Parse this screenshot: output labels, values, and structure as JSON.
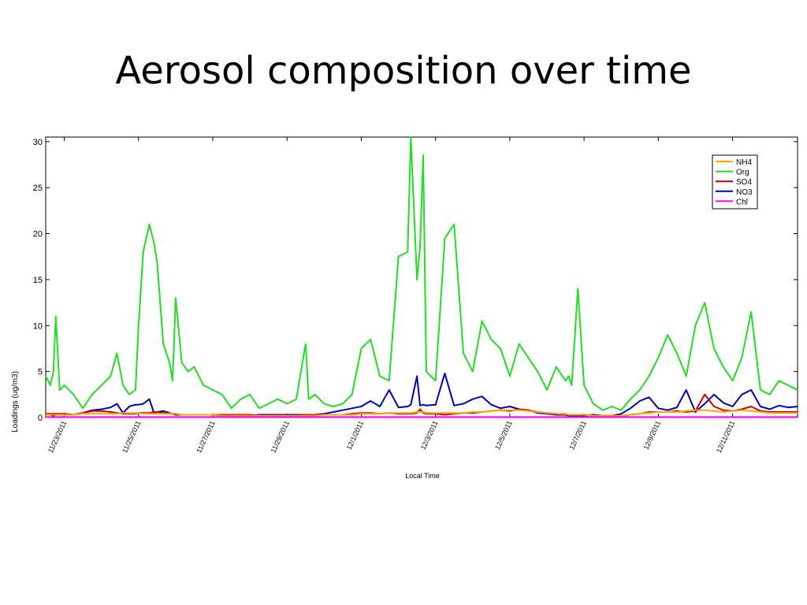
{
  "slide": {
    "title": "Aerosol composition over time"
  },
  "chart_data": {
    "type": "line",
    "title": "Aerosol composition over time",
    "xlabel": "Local Time",
    "ylabel": "Loadings (ug/m3)",
    "xlim": [
      "11/22/2011 12:00",
      "12/12/2011 18:00"
    ],
    "ylim": [
      0,
      30.5
    ],
    "yticks": [
      0,
      5,
      10,
      15,
      20,
      25,
      30
    ],
    "xticks": [
      "11/23/2011",
      "11/25/2011",
      "11/27/2011",
      "11/29/2011",
      "12/1/2011",
      "12/3/2011",
      "12/5/2011",
      "12/7/2011",
      "12/9/2011",
      "12/11/2011"
    ],
    "legend_position": "top-right",
    "grid": false,
    "x": [
      "11/22 12:00",
      "11/22 15:00",
      "11/22 17:00",
      "11/22 18:30",
      "11/22 21:00",
      "11/23 00:00",
      "11/23 06:00",
      "11/23 12:00",
      "11/23 18:00",
      "11/24 00:00",
      "11/24 06:00",
      "11/24 10:00",
      "11/24 14:00",
      "11/24 18:00",
      "11/24 22:00",
      "11/25 00:00",
      "11/25 03:00",
      "11/25 07:00",
      "11/25 10:00",
      "11/25 12:00",
      "11/25 16:00",
      "11/25 20:00",
      "11/25 22:00",
      "11/26 00:00",
      "11/26 04:00",
      "11/26 08:00",
      "11/26 12:00",
      "11/26 18:00",
      "11/27 00:00",
      "11/27 06:00",
      "11/27 12:00",
      "11/27 18:00",
      "11/28 00:00",
      "11/28 06:00",
      "11/28 12:00",
      "11/28 18:00",
      "11/29 00:00",
      "11/29 06:00",
      "11/29 12:00",
      "11/29 14:00",
      "11/29 18:00",
      "11/30 00:00",
      "11/30 06:00",
      "11/30 12:00",
      "11/30 18:00",
      "12/1 00:00",
      "12/1 06:00",
      "12/1 12:00",
      "12/1 18:00",
      "12/2 00:00",
      "12/2 06:00",
      "12/2 08:00",
      "12/2 12:00",
      "12/2 14:00",
      "12/2 16:00",
      "12/2 18:00",
      "12/3 00:00",
      "12/3 06:00",
      "12/3 12:00",
      "12/3 18:00",
      "12/4 00:00",
      "12/4 06:00",
      "12/4 12:00",
      "12/4 18:00",
      "12/5 00:00",
      "12/5 06:00",
      "12/5 12:00",
      "12/5 18:00",
      "12/6 00:00",
      "12/6 06:00",
      "12/6 12:00",
      "12/6 14:00",
      "12/6 16:00",
      "12/6 20:00",
      "12/7 00:00",
      "12/7 06:00",
      "12/7 12:00",
      "12/7 18:00",
      "12/8 00:00",
      "12/8 06:00",
      "12/8 12:00",
      "12/8 18:00",
      "12/9 00:00",
      "12/9 06:00",
      "12/9 12:00",
      "12/9 18:00",
      "12/10 00:00",
      "12/10 06:00",
      "12/10 12:00",
      "12/10 18:00",
      "12/11 00:00",
      "12/11 06:00",
      "12/11 12:00",
      "12/11 18:00",
      "12/12 00:00",
      "12/12 06:00",
      "12/12 12:00",
      "12/12 18:00"
    ],
    "series": [
      {
        "name": "NH4",
        "color": "#ffa500",
        "values": [
          0.3,
          0.3,
          0.3,
          0.3,
          0.3,
          0.3,
          0.3,
          0.4,
          0.4,
          0.4,
          0.4,
          0.4,
          0.5,
          0.5,
          0.5,
          0.5,
          0.4,
          0.4,
          0.4,
          0.4,
          0.4,
          0.4,
          0.4,
          0.4,
          0.3,
          0.3,
          0.3,
          0.3,
          0.3,
          0.2,
          0.2,
          0.2,
          0.2,
          0.2,
          0.2,
          0.2,
          0.2,
          0.2,
          0.2,
          0.2,
          0.2,
          0.3,
          0.3,
          0.3,
          0.3,
          0.4,
          0.4,
          0.4,
          0.5,
          0.5,
          0.5,
          0.5,
          0.6,
          0.6,
          0.6,
          0.5,
          0.5,
          0.5,
          0.5,
          0.5,
          0.6,
          0.6,
          0.7,
          0.8,
          0.8,
          0.8,
          0.7,
          0.6,
          0.5,
          0.4,
          0.4,
          0.3,
          0.3,
          0.3,
          0.3,
          0.2,
          0.2,
          0.2,
          0.2,
          0.3,
          0.4,
          0.5,
          0.6,
          0.6,
          0.6,
          0.7,
          0.8,
          0.8,
          0.7,
          0.6,
          0.7,
          0.8,
          0.7,
          0.6,
          0.5,
          0.5,
          0.5,
          0.5
        ]
      },
      {
        "name": "Org",
        "color": "#22dd22",
        "values": [
          4.5,
          3.5,
          5,
          11,
          3,
          3.5,
          2.5,
          1,
          2.5,
          3.5,
          4.5,
          7,
          3.5,
          2.5,
          3,
          10,
          18,
          21,
          19,
          17,
          8,
          6,
          4,
          13,
          6,
          5,
          5.5,
          3.5,
          3,
          2.5,
          1,
          2,
          2.5,
          1,
          1.5,
          2,
          1.5,
          2,
          8,
          2,
          2.5,
          1.5,
          1.2,
          1.5,
          2.5,
          7.5,
          8.5,
          4.5,
          4,
          17.5,
          18,
          30.5,
          15,
          18.5,
          28.5,
          5,
          4,
          19.5,
          21,
          7,
          5,
          10.5,
          8.5,
          7.5,
          4.5,
          8,
          6.5,
          5,
          3,
          5.5,
          4,
          4.5,
          3.5,
          14,
          3.5,
          1.5,
          0.8,
          1.2,
          0.8,
          2,
          3,
          4.5,
          6.5,
          9,
          7,
          4.5,
          10,
          12.5,
          7.5,
          5.5,
          4,
          6.5,
          11.5,
          3,
          2.5,
          4,
          3.5,
          3
        ]
      },
      {
        "name": "SO4",
        "color": "#cc0000",
        "values": [
          0.4,
          0.4,
          0.4,
          0.4,
          0.4,
          0.4,
          0.3,
          0.5,
          0.7,
          0.7,
          0.6,
          0.5,
          0.4,
          0.4,
          0.4,
          0.5,
          0.5,
          0.5,
          0.6,
          0.6,
          0.5,
          0.4,
          0.4,
          0.4,
          0.3,
          0.3,
          0.3,
          0.3,
          0.3,
          0.3,
          0.3,
          0.3,
          0.3,
          0.2,
          0.2,
          0.2,
          0.2,
          0.2,
          0.3,
          0.3,
          0.3,
          0.3,
          0.3,
          0.3,
          0.4,
          0.5,
          0.5,
          0.4,
          0.5,
          0.4,
          0.4,
          0.4,
          0.5,
          0.9,
          0.5,
          0.4,
          0.4,
          0.3,
          0.4,
          0.5,
          0.5,
          0.6,
          0.7,
          0.8,
          0.7,
          0.9,
          0.8,
          0.6,
          0.5,
          0.4,
          0.3,
          0.3,
          0.3,
          0.3,
          0.3,
          0.2,
          0.2,
          0.2,
          0.2,
          0.3,
          0.4,
          0.6,
          0.6,
          0.6,
          0.7,
          0.6,
          0.7,
          2.5,
          1.2,
          0.8,
          0.7,
          0.9,
          1.2,
          0.7,
          0.6,
          0.6,
          0.6,
          0.6
        ]
      },
      {
        "name": "NO3",
        "color": "#0000bb",
        "values": [
          0.3,
          0.3,
          0.2,
          0.3,
          0.3,
          0.4,
          0.3,
          0.5,
          0.8,
          0.9,
          1.1,
          1.5,
          0.5,
          1.2,
          1.4,
          1.4,
          1.5,
          2,
          0.5,
          0.6,
          0.7,
          0.5,
          0.4,
          0.3,
          0.3,
          0.3,
          0.3,
          0.3,
          0.3,
          0.2,
          0.2,
          0.2,
          0.2,
          0.3,
          0.3,
          0.3,
          0.3,
          0.3,
          0.3,
          0.3,
          0.3,
          0.4,
          0.6,
          0.8,
          1,
          1.2,
          1.8,
          1.2,
          3,
          1.1,
          1.2,
          1.4,
          4.5,
          1.3,
          1.4,
          1.3,
          1.4,
          4.8,
          1.3,
          1.5,
          2,
          2.3,
          1.4,
          1,
          1.2,
          0.9,
          0.8,
          0.5,
          0.4,
          0.3,
          0.3,
          0.2,
          0.2,
          0.2,
          0.2,
          0.3,
          0.2,
          0.2,
          0.4,
          1,
          1.8,
          2.2,
          1,
          0.8,
          1.1,
          3,
          0.6,
          1.5,
          2.5,
          1.6,
          1.2,
          2.5,
          3,
          1.2,
          0.9,
          1.3,
          1.1,
          1.2
        ]
      },
      {
        "name": "Chl",
        "color": "#ff00ff",
        "values": [
          0.05,
          0.05,
          0.05,
          0.05,
          0.05,
          0.05,
          0.05,
          0.05,
          0.05,
          0.05,
          0.05,
          0.05,
          0.05,
          0.05,
          0.05,
          0.05,
          0.05,
          0.05,
          0.05,
          0.05,
          0.05,
          0.05,
          0.05,
          0.05,
          0.05,
          0.05,
          0.05,
          0.05,
          0.05,
          0.05,
          0.05,
          0.05,
          0.05,
          0.05,
          0.05,
          0.05,
          0.05,
          0.05,
          0.05,
          0.05,
          0.05,
          0.05,
          0.05,
          0.05,
          0.05,
          0.05,
          0.05,
          0.05,
          0.05,
          0.05,
          0.05,
          0.05,
          0.05,
          0.05,
          0.05,
          0.05,
          0.05,
          0.05,
          0.05,
          0.05,
          0.05,
          0.05,
          0.05,
          0.05,
          0.05,
          0.05,
          0.05,
          0.05,
          0.05,
          0.05,
          0.05,
          0.05,
          0.05,
          0.05,
          0.05,
          0.05,
          0.05,
          0.05,
          0.05,
          0.05,
          0.05,
          0.05,
          0.05,
          0.05,
          0.05,
          0.05,
          0.05,
          0.05,
          0.05,
          0.05,
          0.05,
          0.05,
          0.05,
          0.05,
          0.05,
          0.05,
          0.05,
          0.05
        ]
      }
    ]
  }
}
